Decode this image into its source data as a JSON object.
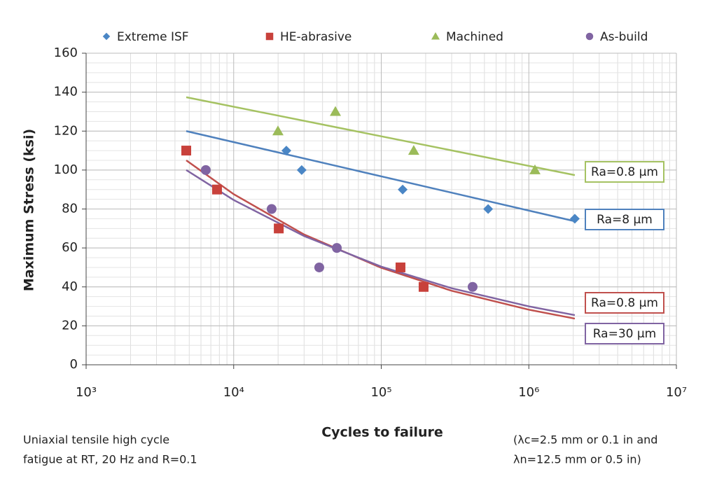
{
  "chart_data": {
    "type": "scatter",
    "xlabel": "Cycles to failure",
    "ylabel": "Maximum Stress (ksi)",
    "xscale": "log",
    "xlim": [
      1000,
      10000000
    ],
    "xticks": [
      {
        "value": 1000,
        "label": "10³"
      },
      {
        "value": 10000,
        "label": "10⁴"
      },
      {
        "value": 100000,
        "label": "10⁵"
      },
      {
        "value": 1000000,
        "label": "10⁶"
      },
      {
        "value": 10000000,
        "label": "10⁷"
      }
    ],
    "ylim": [
      0,
      160
    ],
    "yticks": [
      0,
      20,
      40,
      60,
      80,
      100,
      120,
      140,
      160
    ],
    "grid": true,
    "legend": "top",
    "series": [
      {
        "name": "Extreme ISF",
        "color": "#4a86c5",
        "marker": "diamond",
        "x": [
          22750,
          28900,
          139700,
          530000,
          2050000
        ],
        "values": [
          110,
          100,
          90,
          80,
          75
        ]
      },
      {
        "name": "HE-abrasive",
        "color": "#c8413b",
        "marker": "square",
        "x": [
          4770,
          7710,
          20200,
          135000,
          193600
        ],
        "values": [
          110,
          90,
          70,
          50,
          40
        ]
      },
      {
        "name": "Machined",
        "color": "#9bbb59",
        "marker": "triangle",
        "x": [
          19950,
          48900,
          166000,
          1100000
        ],
        "values": [
          120,
          130,
          110,
          100
        ]
      },
      {
        "name": "As-build",
        "color": "#8064a2",
        "marker": "circle",
        "x": [
          6470,
          18070,
          38000,
          50000,
          416000
        ],
        "values": [
          100,
          80,
          50,
          60,
          40
        ]
      }
    ],
    "trends": [
      {
        "label": "Ra=0.8 μm",
        "color": "#a5c262",
        "x": [
          4770,
          2050000
        ],
        "values": [
          137.4,
          97.4
        ]
      },
      {
        "label": "Ra=8 μm",
        "color": "#4f81bd",
        "x": [
          4770,
          2050000
        ],
        "values": [
          120,
          73.7
        ]
      },
      {
        "label": "Ra=0.8 μm",
        "color": "#c0504d",
        "x": [
          4770,
          10000,
          30000,
          100000,
          300000,
          1000000,
          2050000
        ],
        "values": [
          105,
          87.6,
          66.9,
          49.8,
          38,
          28.3,
          23.7
        ]
      },
      {
        "label": "Ra=30 μm",
        "color": "#8064a2",
        "x": [
          4770,
          10000,
          30000,
          100000,
          300000,
          1000000,
          2050000
        ],
        "values": [
          100,
          84.6,
          66.1,
          50.4,
          39.3,
          30,
          25.5
        ]
      }
    ],
    "notes": [
      [
        "Uniaxial tensile high cycle",
        "fatigue at RT, 20 Hz and R=0.1"
      ],
      [
        "(λc=2.5 mm or 0.1 in and",
        "λn=12.5 mm or 0.5 in)"
      ]
    ]
  }
}
